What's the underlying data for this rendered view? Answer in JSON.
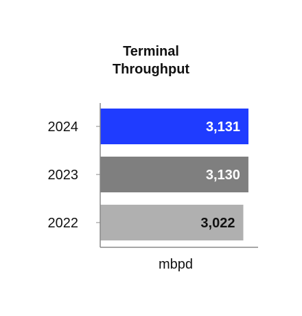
{
  "chart_data": {
    "type": "bar",
    "orientation": "horizontal",
    "title_line1": "Terminal",
    "title_line2": "Throughput",
    "xlabel": "mbpd",
    "ylabel": "",
    "categories": [
      "2024",
      "2023",
      "2022"
    ],
    "values": [
      3131,
      3130,
      3022
    ],
    "value_labels": [
      "3,131",
      "3,130",
      "3,022"
    ],
    "bar_colors": [
      "#1f3cff",
      "#7f7f7f",
      "#b0b0b0"
    ],
    "label_colors": [
      "#ffffff",
      "#ffffff",
      "#111111"
    ],
    "xlim": [
      0,
      3600
    ],
    "grid": false,
    "legend": "none"
  }
}
